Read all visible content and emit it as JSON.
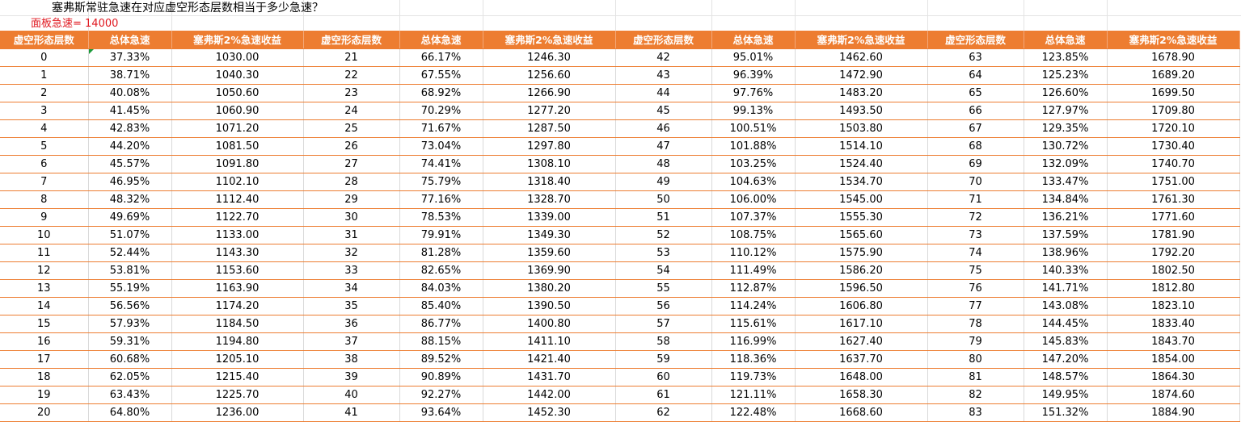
{
  "sheet": {
    "title": "塞弗斯常驻急速在对应虚空形态层数相当于多少急速？",
    "panel_label": "面板急速= 14000",
    "headers": [
      "虚空形态层数",
      "总体急速",
      "塞弗斯2%急速收益",
      "虚空形态层数",
      "总体急速",
      "塞弗斯2%急速收益",
      "虚空形态层数",
      "总体急速",
      "塞弗斯2%急速收益",
      "虚空形态层数",
      "总体急速",
      "塞弗斯2%急速收益"
    ],
    "rows": [
      [
        "0",
        "37.33%",
        "1030.00",
        "21",
        "66.17%",
        "1246.30",
        "42",
        "95.01%",
        "1462.60",
        "63",
        "123.85%",
        "1678.90"
      ],
      [
        "1",
        "38.71%",
        "1040.30",
        "22",
        "67.55%",
        "1256.60",
        "43",
        "96.39%",
        "1472.90",
        "64",
        "125.23%",
        "1689.20"
      ],
      [
        "2",
        "40.08%",
        "1050.60",
        "23",
        "68.92%",
        "1266.90",
        "44",
        "97.76%",
        "1483.20",
        "65",
        "126.60%",
        "1699.50"
      ],
      [
        "3",
        "41.45%",
        "1060.90",
        "24",
        "70.29%",
        "1277.20",
        "45",
        "99.13%",
        "1493.50",
        "66",
        "127.97%",
        "1709.80"
      ],
      [
        "4",
        "42.83%",
        "1071.20",
        "25",
        "71.67%",
        "1287.50",
        "46",
        "100.51%",
        "1503.80",
        "67",
        "129.35%",
        "1720.10"
      ],
      [
        "5",
        "44.20%",
        "1081.50",
        "26",
        "73.04%",
        "1297.80",
        "47",
        "101.88%",
        "1514.10",
        "68",
        "130.72%",
        "1730.40"
      ],
      [
        "6",
        "45.57%",
        "1091.80",
        "27",
        "74.41%",
        "1308.10",
        "48",
        "103.25%",
        "1524.40",
        "69",
        "132.09%",
        "1740.70"
      ],
      [
        "7",
        "46.95%",
        "1102.10",
        "28",
        "75.79%",
        "1318.40",
        "49",
        "104.63%",
        "1534.70",
        "70",
        "133.47%",
        "1751.00"
      ],
      [
        "8",
        "48.32%",
        "1112.40",
        "29",
        "77.16%",
        "1328.70",
        "50",
        "106.00%",
        "1545.00",
        "71",
        "134.84%",
        "1761.30"
      ],
      [
        "9",
        "49.69%",
        "1122.70",
        "30",
        "78.53%",
        "1339.00",
        "51",
        "107.37%",
        "1555.30",
        "72",
        "136.21%",
        "1771.60"
      ],
      [
        "10",
        "51.07%",
        "1133.00",
        "31",
        "79.91%",
        "1349.30",
        "52",
        "108.75%",
        "1565.60",
        "73",
        "137.59%",
        "1781.90"
      ],
      [
        "11",
        "52.44%",
        "1143.30",
        "32",
        "81.28%",
        "1359.60",
        "53",
        "110.12%",
        "1575.90",
        "74",
        "138.96%",
        "1792.20"
      ],
      [
        "12",
        "53.81%",
        "1153.60",
        "33",
        "82.65%",
        "1369.90",
        "54",
        "111.49%",
        "1586.20",
        "75",
        "140.33%",
        "1802.50"
      ],
      [
        "13",
        "55.19%",
        "1163.90",
        "34",
        "84.03%",
        "1380.20",
        "55",
        "112.87%",
        "1596.50",
        "76",
        "141.71%",
        "1812.80"
      ],
      [
        "14",
        "56.56%",
        "1174.20",
        "35",
        "85.40%",
        "1390.50",
        "56",
        "114.24%",
        "1606.80",
        "77",
        "143.08%",
        "1823.10"
      ],
      [
        "15",
        "57.93%",
        "1184.50",
        "36",
        "86.77%",
        "1400.80",
        "57",
        "115.61%",
        "1617.10",
        "78",
        "144.45%",
        "1833.40"
      ],
      [
        "16",
        "59.31%",
        "1194.80",
        "37",
        "88.15%",
        "1411.10",
        "58",
        "116.99%",
        "1627.40",
        "79",
        "145.83%",
        "1843.70"
      ],
      [
        "17",
        "60.68%",
        "1205.10",
        "38",
        "89.52%",
        "1421.40",
        "59",
        "118.36%",
        "1637.70",
        "80",
        "147.20%",
        "1854.00"
      ],
      [
        "18",
        "62.05%",
        "1215.40",
        "39",
        "90.89%",
        "1431.70",
        "60",
        "119.73%",
        "1648.00",
        "81",
        "148.57%",
        "1864.30"
      ],
      [
        "19",
        "63.43%",
        "1225.70",
        "40",
        "92.27%",
        "1442.00",
        "61",
        "121.11%",
        "1658.30",
        "82",
        "149.95%",
        "1874.60"
      ],
      [
        "20",
        "64.80%",
        "1236.00",
        "41",
        "93.64%",
        "1452.30",
        "62",
        "122.48%",
        "1668.60",
        "83",
        "151.32%",
        "1884.90"
      ]
    ]
  },
  "colors": {
    "header_bg": "#ed7d31",
    "header_text": "#ffffff",
    "panel_text": "#e0161e",
    "row_border": "#ed7d31"
  }
}
